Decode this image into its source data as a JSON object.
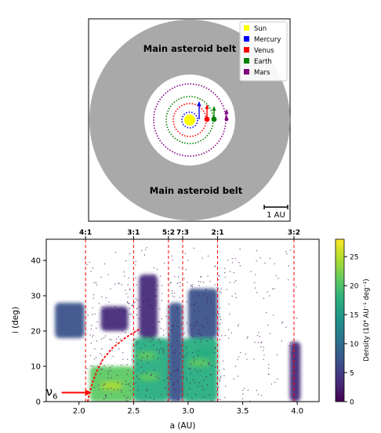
{
  "chart_data": [
    {
      "type": "diagram",
      "labels": {
        "belt_top": "Main asteroid belt",
        "belt_bottom": "Main asteroid belt",
        "scale_bar": "1 AU"
      },
      "legend": [
        {
          "name": "Sun",
          "color": "#ffff00"
        },
        {
          "name": "Mercury",
          "color": "#0000ff"
        },
        {
          "name": "Venus",
          "color": "#ff0000"
        },
        {
          "name": "Earth",
          "color": "#008000"
        },
        {
          "name": "Mars",
          "color": "#800080"
        }
      ],
      "orbits_au": [
        {
          "name": "Mercury",
          "a": 0.39,
          "color": "#0000ff"
        },
        {
          "name": "Venus",
          "a": 0.72,
          "color": "#ff0000"
        },
        {
          "name": "Earth",
          "a": 1.0,
          "color": "#008000"
        },
        {
          "name": "Mars",
          "a": 1.52,
          "color": "#800080"
        }
      ],
      "belt_au": [
        2.1,
        3.7
      ]
    },
    {
      "type": "heatmap",
      "xlabel": "a (AU)",
      "ylabel": "i (deg)",
      "xlim": [
        1.7,
        4.2
      ],
      "ylim": [
        0,
        46
      ],
      "x_ticks": [
        2.0,
        2.5,
        3.0,
        3.5,
        4.0
      ],
      "y_ticks": [
        0,
        10,
        20,
        30,
        40
      ],
      "x_tick_labels": [
        "2.0",
        "2.5",
        "3.0",
        "3.5",
        "4.0"
      ],
      "y_tick_labels": [
        "0",
        "10",
        "20",
        "30",
        "40"
      ],
      "colorbar": {
        "label": "Density (10⁴ AU⁻¹ deg⁻¹)",
        "ticks": [
          0,
          5,
          10,
          15,
          20,
          25
        ],
        "tick_labels": [
          "0",
          "5",
          "10",
          "15",
          "20",
          "25"
        ],
        "range": [
          0,
          28
        ]
      },
      "resonances": [
        {
          "label": "4:1",
          "a": 2.06
        },
        {
          "label": "3:1",
          "a": 2.5
        },
        {
          "label": "5:2",
          "a": 2.82
        },
        {
          "label": "7:3",
          "a": 2.95
        },
        {
          "label": "2:1",
          "a": 3.27
        },
        {
          "label": "3:2",
          "a": 3.97
        }
      ],
      "nu6_label": "ν",
      "nu6_sub": "6",
      "nu6_curve": [
        [
          2.08,
          0
        ],
        [
          2.1,
          3
        ],
        [
          2.13,
          6
        ],
        [
          2.17,
          9
        ],
        [
          2.22,
          12
        ],
        [
          2.3,
          15
        ],
        [
          2.42,
          18
        ],
        [
          2.55,
          20.5
        ]
      ],
      "density_regions": [
        {
          "a0": 1.78,
          "a1": 2.05,
          "i0": 18,
          "i1": 28,
          "d": 6
        },
        {
          "a0": 2.2,
          "a1": 2.45,
          "i0": 20,
          "i1": 27,
          "d": 5
        },
        {
          "a0": 2.1,
          "a1": 2.5,
          "i0": 0,
          "i1": 10,
          "d": 20
        },
        {
          "a0": 2.5,
          "a1": 2.82,
          "i0": 0,
          "i1": 18,
          "d": 17
        },
        {
          "a0": 2.55,
          "a1": 2.72,
          "i0": 18,
          "i1": 36,
          "d": 5
        },
        {
          "a0": 2.82,
          "a1": 2.95,
          "i0": 0,
          "i1": 28,
          "d": 7
        },
        {
          "a0": 2.95,
          "a1": 3.27,
          "i0": 0,
          "i1": 18,
          "d": 19
        },
        {
          "a0": 3.0,
          "a1": 3.27,
          "i0": 18,
          "i1": 32,
          "d": 7
        },
        {
          "a0": 3.93,
          "a1": 4.03,
          "i0": 0,
          "i1": 17,
          "d": 5
        }
      ]
    }
  ]
}
